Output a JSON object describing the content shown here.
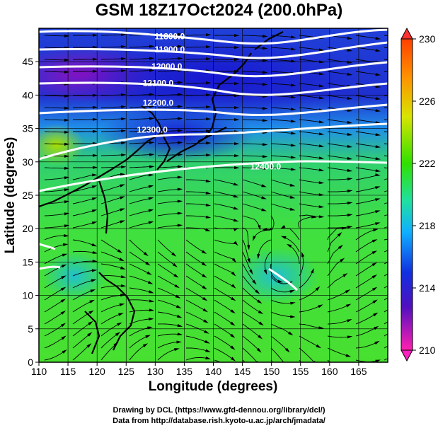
{
  "title": "GSM 18Z17Oct2024 (200.0hPa)",
  "x_axis": {
    "label": "Longitude (degrees)",
    "range": [
      110,
      170
    ],
    "ticks": [
      110,
      115,
      120,
      125,
      130,
      135,
      140,
      145,
      150,
      155,
      160,
      165
    ]
  },
  "y_axis": {
    "label": "Latitude  (degrees)",
    "range": [
      0,
      50
    ],
    "ticks": [
      0,
      5,
      10,
      15,
      20,
      25,
      30,
      35,
      40,
      45
    ]
  },
  "colorbar": {
    "min": 210,
    "max": 230,
    "ticks": [
      230,
      226,
      222,
      218,
      214,
      210
    ],
    "colors": [
      "#ff3000",
      "#ffa000",
      "#d2e600",
      "#40e000",
      "#20e080",
      "#10d0f0",
      "#2060ff",
      "#1010c0",
      "#8000c0",
      "#ff20b0"
    ]
  },
  "contours": [
    {
      "label": "11800.0",
      "lon": 132.5,
      "lat": 48.8
    },
    {
      "label": "11900.0",
      "lon": 132.5,
      "lat": 46.8
    },
    {
      "label": "12000.0",
      "lon": 132.0,
      "lat": 44.3
    },
    {
      "label": "12100.0",
      "lon": 130.5,
      "lat": 41.8
    },
    {
      "label": "12200.0",
      "lon": 130.5,
      "lat": 38.8
    },
    {
      "label": "12300.0",
      "lon": 129.5,
      "lat": 34.8
    },
    {
      "label": "12400.0",
      "lon": 149.0,
      "lat": 29.3
    }
  ],
  "credits": [
    "Drawing by DCL (https://www.gfd-dennou.org/library/dcl/)",
    "Data from http://database.rish.kyoto-u.ac.jp/arch/jmadata/"
  ]
}
